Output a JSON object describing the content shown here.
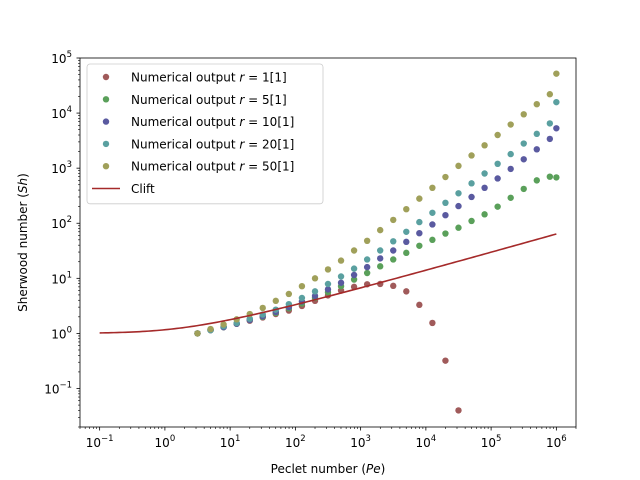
{
  "chart_data": {
    "type": "scatter",
    "xlabel": "Peclet number (Pe)",
    "ylabel": "Sherwood number (Sh)",
    "xlabel_parts": [
      "Peclet number (",
      "Pe",
      ")"
    ],
    "ylabel_parts": [
      "Sherwood number (",
      "Sh",
      ")"
    ],
    "xscale": "log",
    "yscale": "log",
    "xlim": [
      0.05,
      2000000
    ],
    "ylim": [
      0.02,
      100000
    ],
    "grid": false,
    "legend_position": "top-left",
    "x_ticks": [
      {
        "value": 0.1,
        "base": "10",
        "exp": "−1"
      },
      {
        "value": 1,
        "base": "10",
        "exp": "0"
      },
      {
        "value": 10,
        "base": "10",
        "exp": "1"
      },
      {
        "value": 100,
        "base": "10",
        "exp": "2"
      },
      {
        "value": 1000,
        "base": "10",
        "exp": "3"
      },
      {
        "value": 10000,
        "base": "10",
        "exp": "4"
      },
      {
        "value": 100000,
        "base": "10",
        "exp": "5"
      },
      {
        "value": 1000000,
        "base": "10",
        "exp": "6"
      }
    ],
    "y_ticks": [
      {
        "value": 0.1,
        "base": "10",
        "exp": "−1"
      },
      {
        "value": 1,
        "base": "10",
        "exp": "0"
      },
      {
        "value": 10,
        "base": "10",
        "exp": "1"
      },
      {
        "value": 100,
        "base": "10",
        "exp": "2"
      },
      {
        "value": 1000,
        "base": "10",
        "exp": "3"
      },
      {
        "value": 10000,
        "base": "10",
        "exp": "4"
      },
      {
        "value": 100000,
        "base": "10",
        "exp": "5"
      }
    ],
    "series": [
      {
        "name": "Numerical output r = 1[1]",
        "label_prefix": "Numerical output ",
        "label_var": "r",
        "label_suffix": " = 1[1]",
        "color": "#a05a5a",
        "kind": "markers",
        "x": [
          3.16,
          5.01,
          7.94,
          12.6,
          20.0,
          31.6,
          50.1,
          79.4,
          126,
          200,
          316,
          501,
          794,
          1259,
          1995,
          3162,
          5012,
          7943,
          12589,
          19953,
          31623
        ],
        "y": [
          1.0,
          1.15,
          1.3,
          1.5,
          1.7,
          1.95,
          2.25,
          2.6,
          3.15,
          3.9,
          4.9,
          6.0,
          7.0,
          7.8,
          7.9,
          7.3,
          5.8,
          3.3,
          1.55,
          0.32,
          0.04
        ]
      },
      {
        "name": "Numerical output r = 5[1]",
        "label_prefix": "Numerical output ",
        "label_var": "r",
        "label_suffix": " = 5[1]",
        "color": "#5aa05a",
        "kind": "markers",
        "x": [
          3.16,
          5.01,
          7.94,
          12.6,
          20.0,
          31.6,
          50.1,
          79.4,
          126,
          200,
          316,
          501,
          794,
          1259,
          1995,
          3162,
          5012,
          7943,
          12589,
          19953,
          31623,
          50119,
          79433,
          125893,
          199526,
          316228,
          501187,
          794328,
          1000000
        ],
        "y": [
          1.0,
          1.15,
          1.3,
          1.5,
          1.75,
          2.0,
          2.35,
          2.85,
          3.5,
          4.4,
          5.6,
          7.2,
          9.5,
          12.5,
          16.5,
          22,
          29,
          39,
          50,
          65,
          83,
          110,
          145,
          200,
          290,
          420,
          600,
          700,
          680
        ]
      },
      {
        "name": "Numerical output r = 10[1]",
        "label_prefix": "Numerical output ",
        "label_var": "r",
        "label_suffix": " = 10[1]",
        "color": "#5a5aa0",
        "kind": "markers",
        "x": [
          3.16,
          5.01,
          7.94,
          12.6,
          20.0,
          31.6,
          50.1,
          79.4,
          126,
          200,
          316,
          501,
          794,
          1259,
          1995,
          3162,
          5012,
          7943,
          12589,
          19953,
          31623,
          50119,
          79433,
          125893,
          199526,
          316228,
          501187,
          794328,
          1000000
        ],
        "y": [
          1.0,
          1.15,
          1.3,
          1.5,
          1.75,
          2.05,
          2.45,
          3.0,
          3.8,
          4.8,
          6.3,
          8.3,
          11.5,
          16,
          23,
          32,
          46,
          66,
          95,
          140,
          205,
          300,
          440,
          650,
          970,
          1450,
          2200,
          3400,
          5300
        ]
      },
      {
        "name": "Numerical output r = 20[1]",
        "label_prefix": "Numerical output ",
        "label_var": "r",
        "label_suffix": " = 20[1]",
        "color": "#5aa0a0",
        "kind": "markers",
        "x": [
          3.16,
          5.01,
          7.94,
          12.6,
          20.0,
          31.6,
          50.1,
          79.4,
          126,
          200,
          316,
          501,
          794,
          1259,
          1995,
          3162,
          5012,
          7943,
          12589,
          19953,
          31623,
          50119,
          79433,
          125893,
          199526,
          316228,
          501187,
          794328,
          1000000
        ],
        "y": [
          1.0,
          1.15,
          1.35,
          1.55,
          1.85,
          2.2,
          2.7,
          3.4,
          4.4,
          5.8,
          7.9,
          10.8,
          15,
          22,
          32,
          47,
          70,
          105,
          155,
          235,
          350,
          530,
          800,
          1200,
          1800,
          2800,
          4200,
          6500,
          15800
        ]
      },
      {
        "name": "Numerical output r = 50[1]",
        "label_prefix": "Numerical output ",
        "label_var": "r",
        "label_suffix": " = 50[1]",
        "color": "#a0a05a",
        "kind": "markers",
        "x": [
          3.16,
          5.01,
          7.94,
          12.6,
          20.0,
          31.6,
          50.1,
          79.4,
          126,
          200,
          316,
          501,
          794,
          1259,
          1995,
          3162,
          5012,
          7943,
          12589,
          19953,
          31623,
          50119,
          79433,
          125893,
          199526,
          316228,
          501187,
          794328,
          1000000
        ],
        "y": [
          1.0,
          1.2,
          1.45,
          1.8,
          2.25,
          2.9,
          3.9,
          5.2,
          7.2,
          10,
          14.5,
          21,
          32,
          48,
          75,
          115,
          180,
          280,
          440,
          690,
          1100,
          1700,
          2600,
          4000,
          6200,
          9500,
          14500,
          22000,
          52000
        ]
      },
      {
        "name": "Clift",
        "label_prefix": "Clift",
        "label_var": "",
        "label_suffix": "",
        "color": "#a52a2a",
        "kind": "line"
      }
    ]
  }
}
